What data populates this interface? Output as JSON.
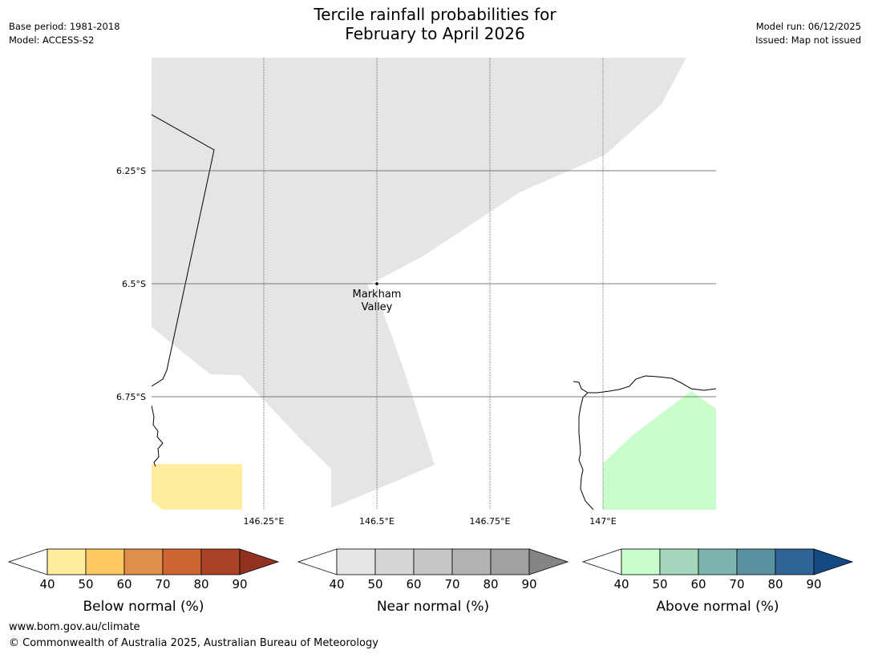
{
  "header": {
    "title_line1": "Tercile rainfall probabilities for",
    "title_line2": "February to April 2026",
    "base_period": "Base period: 1981-2018",
    "model": "Model: ACCESS-S2",
    "model_run": "Model run: 06/12/2025",
    "issued": "Issued: Map not issued"
  },
  "map": {
    "lat_labels": [
      "6.25°S",
      "6.5°S",
      "6.75°S"
    ],
    "lon_labels": [
      "146.25°E",
      "146.5°E",
      "146.75°E",
      "147°E"
    ],
    "place": {
      "name_line1": "Markham",
      "name_line2": "Valley"
    },
    "colors": {
      "near_normal_40": "#e5e5e5",
      "below_normal_40": "#ffeda0",
      "above_normal_40": "#c9fdcb",
      "gridline": "#555555",
      "coastline": "#000000"
    }
  },
  "legends": [
    {
      "label": "Below normal (%)",
      "ticks": [
        "40",
        "50",
        "60",
        "70",
        "80",
        "90"
      ],
      "colors": [
        "#ffeda0",
        "#fec962",
        "#e0904a",
        "#cd6434",
        "#ab4426",
        "#923120"
      ]
    },
    {
      "label": "Near normal (%)",
      "ticks": [
        "40",
        "50",
        "60",
        "70",
        "80",
        "90"
      ],
      "colors": [
        "#e5e5e5",
        "#d6d6d6",
        "#c6c6c6",
        "#b4b4b4",
        "#a1a1a1",
        "#858585"
      ]
    },
    {
      "label": "Above normal (%)",
      "ticks": [
        "40",
        "50",
        "60",
        "70",
        "80",
        "90"
      ],
      "colors": [
        "#c9fdcb",
        "#a4d6bb",
        "#7db4ad",
        "#5a91a0",
        "#2f6496",
        "#134a83"
      ]
    }
  ],
  "footer": {
    "url": "www.bom.gov.au/climate",
    "copyright": "© Commonwealth of Australia 2025, Australian Bureau of Meteorology"
  }
}
